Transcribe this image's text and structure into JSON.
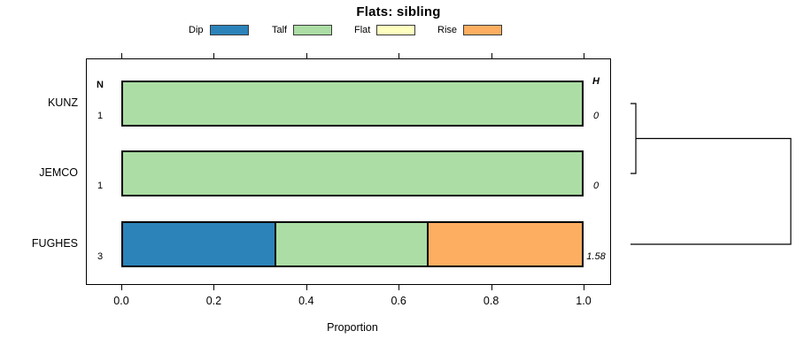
{
  "chart_data": {
    "type": "bar",
    "orientation": "horizontal",
    "stacked": true,
    "title": "Flats: sibling",
    "xlabel": "Proportion",
    "xlim": [
      0.0,
      1.0
    ],
    "xticks": [
      0.0,
      0.2,
      0.4,
      0.6,
      0.8,
      1.0
    ],
    "xtick_labels": [
      "0.0",
      "0.2",
      "0.4",
      "0.6",
      "0.8",
      "1.0"
    ],
    "grid": false,
    "legend_position": "top",
    "states": [
      {
        "label": "Dip",
        "color": "#2B83BA"
      },
      {
        "label": "Talf",
        "color": "#ABDDA4"
      },
      {
        "label": "Flat",
        "color": "#FFFFBF"
      },
      {
        "label": "Rise",
        "color": "#FDAE61"
      }
    ],
    "columns": {
      "n_header": "N",
      "h_header": "H"
    },
    "categories": [
      "KUNZ",
      "JEMCO",
      "FUGHES"
    ],
    "rows": [
      {
        "label": "KUNZ",
        "n": "1",
        "h": "0",
        "segments": [
          {
            "state": "Talf",
            "value": 1.0
          }
        ]
      },
      {
        "label": "JEMCO",
        "n": "1",
        "h": "0",
        "segments": [
          {
            "state": "Talf",
            "value": 1.0
          }
        ]
      },
      {
        "label": "FUGHES",
        "n": "3",
        "h": "1.58",
        "segments": [
          {
            "state": "Dip",
            "value": 0.3333
          },
          {
            "state": "Talf",
            "value": 0.3334
          },
          {
            "state": "Rise",
            "value": 0.3333
          }
        ]
      }
    ],
    "dendrogram": {
      "position": "right",
      "merges": [
        {
          "members": [
            "KUNZ",
            "JEMCO"
          ],
          "relative_height": 0.03
        },
        {
          "members": [
            "KUNZ+JEMCO",
            "FUGHES"
          ],
          "relative_height": 1.0
        }
      ]
    }
  }
}
